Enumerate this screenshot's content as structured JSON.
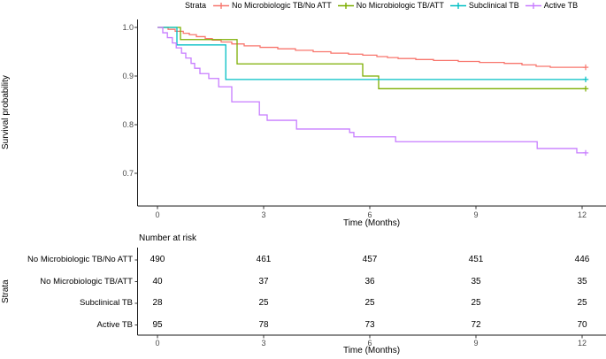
{
  "chart_data": [
    {
      "type": "line",
      "subtype": "kaplan-meier-step",
      "title": "",
      "xlabel": "Time (Months)",
      "ylabel": "Survival probability",
      "xlim": [
        0,
        12.1
      ],
      "ylim": [
        0.64,
        1.0
      ],
      "x_ticks": [
        0,
        3,
        6,
        9,
        12
      ],
      "y_ticks": [
        1.0,
        0.9,
        0.8,
        0.7
      ],
      "grid": false,
      "legend_position": "top",
      "legend_title": "Strata",
      "censor_marks_at_end": true,
      "end_month": 12.1,
      "series": [
        {
          "name": "No Microbiologic TB/No ATT",
          "color": "#F8766D",
          "steps": [
            [
              0,
              1.0
            ],
            [
              0.3,
              0.996
            ],
            [
              0.5,
              0.992
            ],
            [
              0.73,
              0.988
            ],
            [
              0.9,
              0.985
            ],
            [
              1.1,
              0.981
            ],
            [
              1.35,
              0.977
            ],
            [
              1.55,
              0.974
            ],
            [
              1.8,
              0.97
            ],
            [
              2.1,
              0.966
            ],
            [
              2.45,
              0.962
            ],
            [
              2.9,
              0.959
            ],
            [
              3.4,
              0.956
            ],
            [
              3.9,
              0.953
            ],
            [
              4.4,
              0.95
            ],
            [
              4.9,
              0.947
            ],
            [
              5.4,
              0.945
            ],
            [
              5.8,
              0.943
            ],
            [
              6.2,
              0.94
            ],
            [
              6.5,
              0.938
            ],
            [
              6.8,
              0.936
            ],
            [
              7.3,
              0.934
            ],
            [
              7.8,
              0.932
            ],
            [
              8.5,
              0.93
            ],
            [
              9.1,
              0.928
            ],
            [
              9.8,
              0.926
            ],
            [
              10.3,
              0.923
            ],
            [
              10.7,
              0.92
            ],
            [
              11.1,
              0.918
            ]
          ]
        },
        {
          "name": "No Microbiologic TB/ATT",
          "color": "#7CAE00",
          "steps": [
            [
              0,
              1.0
            ],
            [
              0.65,
              0.975
            ],
            [
              2.25,
              0.925
            ],
            [
              5.8,
              0.9
            ],
            [
              6.25,
              0.874
            ]
          ]
        },
        {
          "name": "Subclinical TB",
          "color": "#00BFC4",
          "steps": [
            [
              0,
              1.0
            ],
            [
              0.55,
              0.964
            ],
            [
              1.93,
              0.893
            ]
          ]
        },
        {
          "name": "Active TB",
          "color": "#C77CFF",
          "steps": [
            [
              0,
              1.0
            ],
            [
              0.15,
              0.989
            ],
            [
              0.28,
              0.979
            ],
            [
              0.42,
              0.968
            ],
            [
              0.53,
              0.958
            ],
            [
              0.68,
              0.947
            ],
            [
              0.8,
              0.937
            ],
            [
              0.95,
              0.926
            ],
            [
              1.05,
              0.916
            ],
            [
              1.2,
              0.905
            ],
            [
              1.45,
              0.895
            ],
            [
              1.73,
              0.878
            ],
            [
              2.1,
              0.847
            ],
            [
              2.88,
              0.82
            ],
            [
              3.1,
              0.809
            ],
            [
              3.93,
              0.791
            ],
            [
              5.43,
              0.784
            ],
            [
              5.55,
              0.775
            ],
            [
              6.73,
              0.765
            ],
            [
              10.73,
              0.751
            ],
            [
              11.85,
              0.742
            ]
          ]
        }
      ]
    },
    {
      "type": "table",
      "title": "Number at risk",
      "ylabel": "Strata",
      "xlabel": "Time (Months)",
      "x_ticks": [
        0,
        3,
        6,
        9,
        12
      ],
      "rows": [
        {
          "label": "No Microbiologic TB/No ATT",
          "values": [
            490,
            461,
            457,
            451,
            446
          ]
        },
        {
          "label": "No Microbiologic TB/ATT",
          "values": [
            40,
            37,
            36,
            35,
            35
          ]
        },
        {
          "label": "Subclinical TB",
          "values": [
            28,
            25,
            25,
            25,
            25
          ]
        },
        {
          "label": "Active TB",
          "values": [
            95,
            78,
            73,
            72,
            70
          ]
        }
      ]
    }
  ]
}
